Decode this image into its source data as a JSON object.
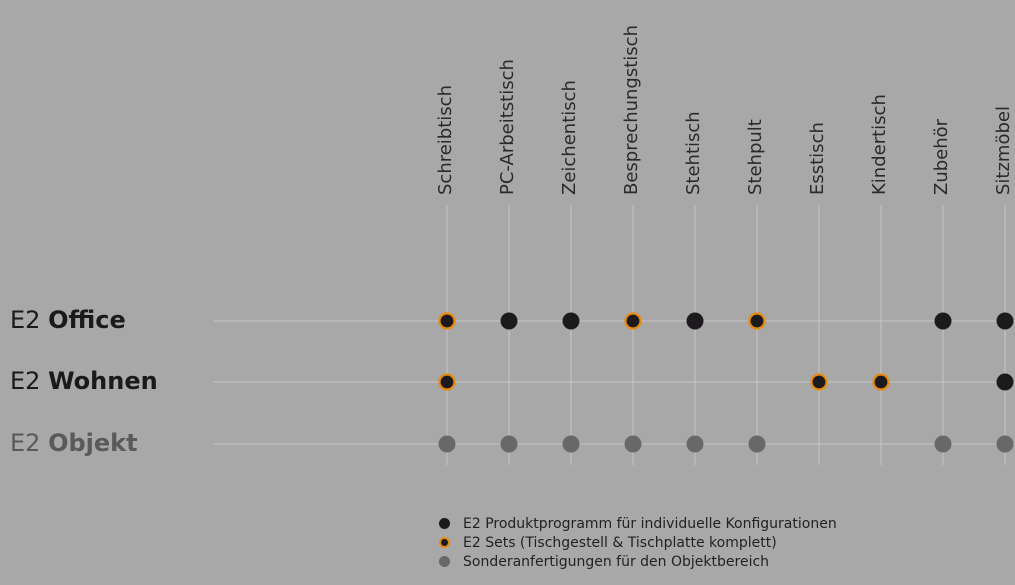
{
  "chart_data": {
    "type": "table",
    "columns": [
      "Schreibtisch",
      "PC-Arbeitstisch",
      "Zeichentisch",
      "Besprechungstisch",
      "Stehtisch",
      "Stehpult",
      "Esstisch",
      "Kindertisch",
      "Zubehör",
      "Sitzmöbel"
    ],
    "rows": [
      {
        "prefix": "E2",
        "name": "Office",
        "style": "office",
        "cells": [
          "set",
          "product",
          "product",
          "set",
          "product",
          "set",
          null,
          null,
          "product",
          "product"
        ]
      },
      {
        "prefix": "E2",
        "name": "Wohnen",
        "style": "wohnen",
        "cells": [
          "set",
          null,
          null,
          null,
          null,
          null,
          "set",
          "set",
          null,
          "product"
        ]
      },
      {
        "prefix": "E2",
        "name": "Objekt",
        "style": "objekt",
        "cells": [
          "special",
          "special",
          "special",
          "special",
          "special",
          "special",
          null,
          null,
          "special",
          "special"
        ]
      }
    ],
    "legend": [
      {
        "key": "product",
        "label": "E2 Produktprogramm für individuelle Konfigurationen"
      },
      {
        "key": "set",
        "label": "E2 Sets (Tischgestell & Tischplatte komplett)"
      },
      {
        "key": "special",
        "label": "Sonderanfertigungen für den Objektbereich"
      }
    ],
    "colors": {
      "background": "#a8a8a8",
      "grid": "#c6c6c6",
      "product": "#1d1a1e",
      "set_fill": "#1d1a1e",
      "set_ring": "#e8890c",
      "special": "#686868",
      "label_dark": "#1a1a1a",
      "label_grey": "#5a5a5a"
    }
  }
}
